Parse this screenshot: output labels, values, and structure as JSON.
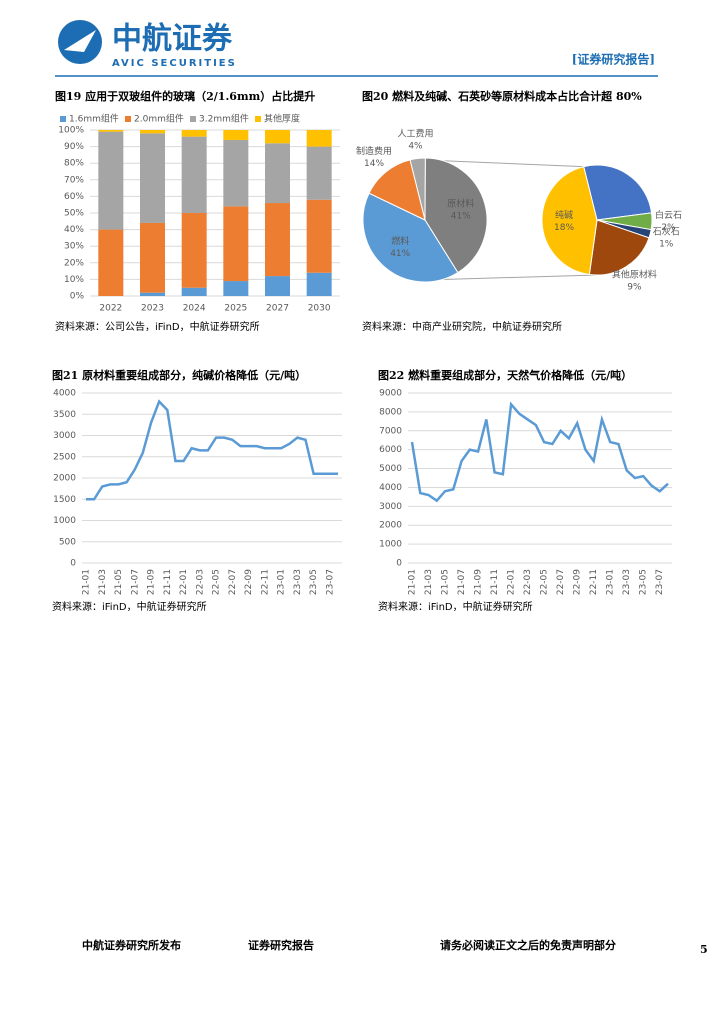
{
  "header": {
    "logo_cn": "中航证券",
    "logo_en": "AVIC SECURITIES",
    "report_type": "[证券研究报告]"
  },
  "chart_data": [
    {
      "type": "bar",
      "title": "图19  应用于双玻组件的玻璃（2/1.6mm）占比提升",
      "source": "资料来源：公司公告，iFinD，中航证券研究所",
      "stacked": true,
      "categories": [
        "2022",
        "2023",
        "2024",
        "2025",
        "2027",
        "2030"
      ],
      "series": [
        {
          "name": "1.6mm组件",
          "color": "#5b9bd5",
          "values": [
            0,
            2,
            5,
            9,
            12,
            14
          ]
        },
        {
          "name": "2.0mm组件",
          "color": "#ed7d31",
          "values": [
            40,
            42,
            45,
            45,
            44,
            44
          ]
        },
        {
          "name": "3.2mm组件",
          "color": "#a5a5a5",
          "values": [
            59,
            54,
            46,
            40,
            36,
            32
          ]
        },
        {
          "name": "其他厚度",
          "color": "#ffc000",
          "values": [
            1,
            2,
            4,
            6,
            8,
            10
          ]
        }
      ],
      "ylim": [
        0,
        100
      ],
      "yticks": [
        {
          "value": 0,
          "label": "0%"
        },
        {
          "value": 10,
          "label": "10%"
        },
        {
          "value": 20,
          "label": "20%"
        },
        {
          "value": 30,
          "label": "30%"
        },
        {
          "value": 40,
          "label": "40%"
        },
        {
          "value": 50,
          "label": "50%"
        },
        {
          "value": 60,
          "label": "60%"
        },
        {
          "value": 70,
          "label": "70%"
        },
        {
          "value": 80,
          "label": "80%"
        },
        {
          "value": 90,
          "label": "90%"
        },
        {
          "value": 100,
          "label": "100%"
        }
      ],
      "legend": "top"
    },
    {
      "type": "pie",
      "title": "图20  燃料及纯碱、石英砂等原材料成本占比合计超 80%",
      "source": "资料来源：中商产业研究院，中航证券研究所",
      "categories": [
        "人工费用",
        "原材料",
        "燃料",
        "制造费用"
      ],
      "values": [
        4,
        41,
        41,
        14
      ],
      "value_labels": [
        "4%",
        "41%",
        "41%",
        "14%"
      ],
      "colors": [
        "#a5a5a5",
        "#7f7f7f",
        "#5b9bd5",
        "#ed7d31"
      ]
    },
    {
      "type": "pie",
      "categories": [
        null,
        "白云石",
        "石灰石",
        "其他原材料",
        "纯碱"
      ],
      "values": [
        11,
        2,
        1,
        9,
        18
      ],
      "value_labels": [
        null,
        "2%",
        "1%",
        "9%",
        "18%"
      ],
      "colors": [
        "#4472c4",
        "#70ad47",
        "#264478",
        "#9e480e",
        "#ffc000"
      ]
    },
    {
      "type": "line",
      "title": "图21  原材料重要组成部分，纯碱价格降低（元/吨）",
      "source": "资料来源：iFinD，中航证券研究所",
      "categories": [
        "21-01",
        null,
        "21-03",
        null,
        "21-05",
        null,
        "21-07",
        null,
        "21-09",
        null,
        "21-11",
        null,
        "22-01",
        null,
        "22-03",
        null,
        "22-05",
        null,
        "22-07",
        null,
        "22-09",
        null,
        "22-11",
        null,
        "23-01",
        null,
        "23-03",
        null,
        "23-05",
        null,
        "23-07",
        null
      ],
      "series": [
        {
          "color": "#5b9bd5",
          "values": [
            1500,
            1500,
            1800,
            1850,
            1850,
            1900,
            2200,
            2600,
            3300,
            3800,
            3600,
            2400,
            2400,
            2700,
            2650,
            2650,
            2950,
            2950,
            2900,
            2750,
            2750,
            2750,
            2700,
            2700,
            2700,
            2800,
            2950,
            2900,
            2100,
            2100,
            2100,
            2100
          ]
        }
      ],
      "ylim": [
        0,
        4000
      ],
      "yticks": [
        0,
        500,
        1000,
        1500,
        2000,
        2500,
        3000,
        3500,
        4000
      ]
    },
    {
      "type": "line",
      "title": "图22  燃料重要组成部分，天然气价格降低（元/吨）",
      "source": "资料来源：iFinD，中航证券研究所",
      "categories": [
        "21-01",
        null,
        "21-03",
        null,
        "21-05",
        null,
        "21-07",
        null,
        "21-09",
        null,
        "21-11",
        null,
        "22-01",
        null,
        "22-03",
        null,
        "22-05",
        null,
        "22-07",
        null,
        "22-09",
        null,
        "22-11",
        null,
        "23-01",
        null,
        "23-03",
        null,
        "23-05",
        null,
        "23-07",
        null
      ],
      "series": [
        {
          "color": "#5b9bd5",
          "values": [
            6400,
            3700,
            3600,
            3300,
            3800,
            3900,
            5400,
            6000,
            5900,
            7600,
            4800,
            4700,
            8400,
            7900,
            7600,
            7300,
            6400,
            6300,
            7000,
            6600,
            7400,
            6000,
            5400,
            7600,
            6400,
            6300,
            4900,
            4500,
            4600,
            4100,
            3800,
            4200
          ]
        }
      ],
      "ylim": [
        0,
        9000
      ],
      "yticks": [
        0,
        1000,
        2000,
        3000,
        4000,
        5000,
        6000,
        7000,
        8000,
        9000
      ]
    }
  ],
  "footer": {
    "publisher": "中航证券研究所发布",
    "report_type": "证券研究报告",
    "disclaimer": "请务必阅读正文之后的免责声明部分",
    "page": 5
  }
}
